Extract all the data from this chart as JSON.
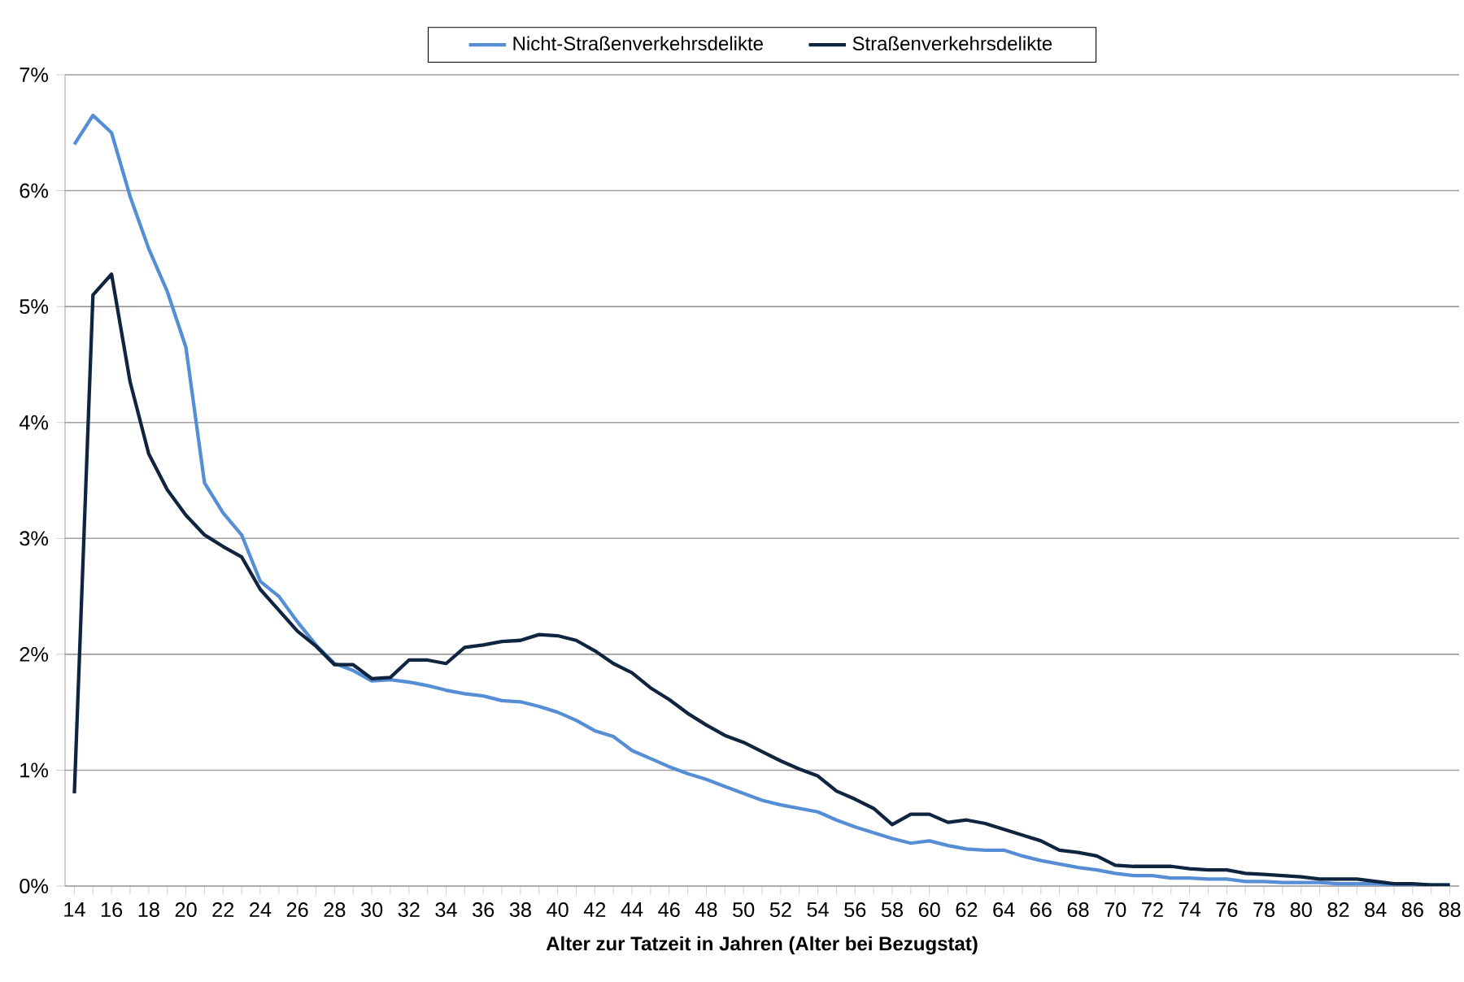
{
  "chart_data": {
    "type": "line",
    "xlabel": "Alter zur Tatzeit in Jahren (Alter bei Bezugstat)",
    "x": [
      14,
      15,
      16,
      17,
      18,
      19,
      20,
      21,
      22,
      23,
      24,
      25,
      26,
      27,
      28,
      29,
      30,
      31,
      32,
      33,
      34,
      35,
      36,
      37,
      38,
      39,
      40,
      41,
      42,
      43,
      44,
      45,
      46,
      47,
      48,
      49,
      50,
      51,
      52,
      53,
      54,
      55,
      56,
      57,
      58,
      59,
      60,
      61,
      62,
      63,
      64,
      65,
      66,
      67,
      68,
      69,
      70,
      71,
      72,
      73,
      74,
      75,
      76,
      77,
      78,
      79,
      80,
      81,
      82,
      83,
      84,
      85,
      86,
      87,
      88
    ],
    "series": [
      {
        "name": "Nicht-Straßenverkehrsdelikte",
        "color": "#558ed5",
        "values": [
          6.4,
          6.65,
          6.5,
          5.95,
          5.5,
          5.13,
          4.65,
          3.48,
          3.22,
          3.03,
          2.63,
          2.5,
          2.28,
          2.08,
          1.92,
          1.86,
          1.77,
          1.78,
          1.76,
          1.73,
          1.69,
          1.66,
          1.64,
          1.6,
          1.59,
          1.55,
          1.5,
          1.43,
          1.34,
          1.29,
          1.17,
          1.1,
          1.03,
          0.97,
          0.92,
          0.86,
          0.8,
          0.74,
          0.7,
          0.67,
          0.64,
          0.57,
          0.51,
          0.46,
          0.41,
          0.37,
          0.39,
          0.35,
          0.32,
          0.31,
          0.31,
          0.26,
          0.22,
          0.19,
          0.16,
          0.14,
          0.11,
          0.09,
          0.09,
          0.07,
          0.07,
          0.06,
          0.06,
          0.04,
          0.04,
          0.03,
          0.03,
          0.03,
          0.02,
          0.02,
          0.02,
          0.01,
          0.01,
          0.01,
          0.01
        ]
      },
      {
        "name": "Straßenverkehrsdelikte",
        "color": "#0f243e",
        "values": [
          0.8,
          5.1,
          5.28,
          4.35,
          3.73,
          3.42,
          3.2,
          3.03,
          2.93,
          2.84,
          2.56,
          2.38,
          2.2,
          2.07,
          1.91,
          1.91,
          1.79,
          1.8,
          1.95,
          1.95,
          1.92,
          2.06,
          2.08,
          2.11,
          2.12,
          2.17,
          2.16,
          2.12,
          2.03,
          1.92,
          1.84,
          1.71,
          1.61,
          1.49,
          1.39,
          1.3,
          1.24,
          1.16,
          1.08,
          1.01,
          0.95,
          0.82,
          0.75,
          0.67,
          0.53,
          0.62,
          0.62,
          0.55,
          0.57,
          0.54,
          0.49,
          0.44,
          0.39,
          0.31,
          0.29,
          0.26,
          0.18,
          0.17,
          0.17,
          0.17,
          0.15,
          0.14,
          0.14,
          0.11,
          0.1,
          0.09,
          0.08,
          0.06,
          0.06,
          0.06,
          0.04,
          0.02,
          0.02,
          0.01,
          0.01
        ]
      }
    ],
    "xlim": [
      13.5,
      88.5
    ],
    "xticks": [
      14,
      {
        "value": 15,
        "label": null
      },
      16,
      {
        "value": 17,
        "label": null
      },
      18,
      {
        "value": 19,
        "label": null
      },
      20,
      {
        "value": 21,
        "label": null
      },
      22,
      {
        "value": 23,
        "label": null
      },
      24,
      {
        "value": 25,
        "label": null
      },
      26,
      {
        "value": 27,
        "label": null
      },
      28,
      {
        "value": 29,
        "label": null
      },
      30,
      {
        "value": 31,
        "label": null
      },
      32,
      {
        "value": 33,
        "label": null
      },
      34,
      {
        "value": 35,
        "label": null
      },
      36,
      {
        "value": 37,
        "label": null
      },
      38,
      {
        "value": 39,
        "label": null
      },
      40,
      {
        "value": 41,
        "label": null
      },
      42,
      {
        "value": 43,
        "label": null
      },
      44,
      {
        "value": 45,
        "label": null
      },
      46,
      {
        "value": 47,
        "label": null
      },
      48,
      {
        "value": 49,
        "label": null
      },
      50,
      {
        "value": 51,
        "label": null
      },
      52,
      {
        "value": 53,
        "label": null
      },
      54,
      {
        "value": 55,
        "label": null
      },
      56,
      {
        "value": 57,
        "label": null
      },
      58,
      {
        "value": 59,
        "label": null
      },
      60,
      {
        "value": 61,
        "label": null
      },
      62,
      {
        "value": 63,
        "label": null
      },
      64,
      {
        "value": 65,
        "label": null
      },
      66,
      {
        "value": 67,
        "label": null
      },
      68,
      {
        "value": 69,
        "label": null
      },
      70,
      {
        "value": 71,
        "label": null
      },
      72,
      {
        "value": 73,
        "label": null
      },
      74,
      {
        "value": 75,
        "label": null
      },
      76,
      {
        "value": 77,
        "label": null
      },
      78,
      {
        "value": 79,
        "label": null
      },
      80,
      {
        "value": 81,
        "label": null
      },
      82,
      {
        "value": 83,
        "label": null
      },
      84,
      {
        "value": 85,
        "label": null
      },
      86,
      {
        "value": 87,
        "label": null
      },
      88
    ],
    "ylim": [
      0,
      7
    ],
    "yticks": [
      {
        "value": 0,
        "label": "0%"
      },
      {
        "value": 1,
        "label": "1%"
      },
      {
        "value": 2,
        "label": "2%"
      },
      {
        "value": 3,
        "label": "3%"
      },
      {
        "value": 4,
        "label": "4%"
      },
      {
        "value": 5,
        "label": "5%"
      },
      {
        "value": 6,
        "label": "6%"
      },
      {
        "value": 7,
        "label": "7%"
      }
    ],
    "grid": "y",
    "legend": "top"
  }
}
